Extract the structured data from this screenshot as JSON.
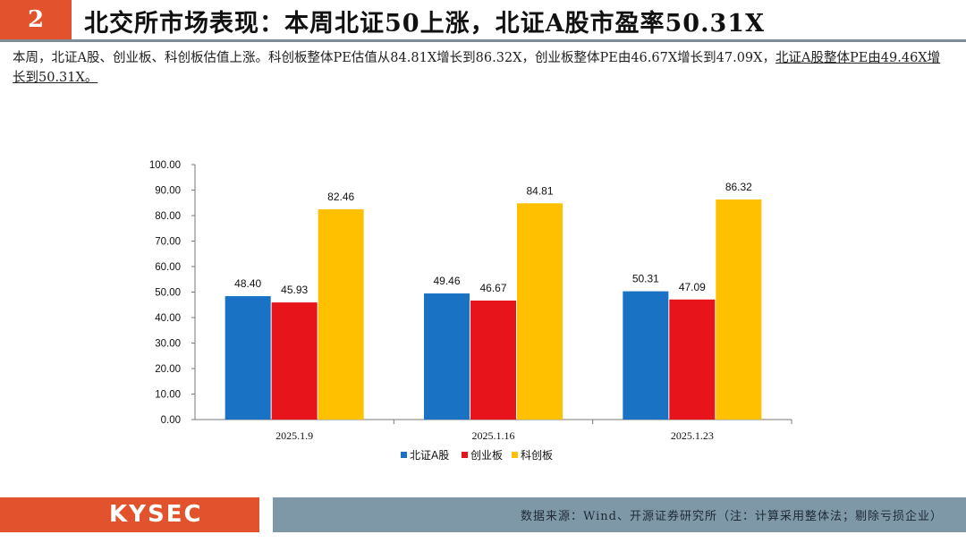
{
  "header": {
    "section_number": "2",
    "title": "北交所市场表现：本周北证50上涨，北证A股市盈率50.31X"
  },
  "summary": {
    "text_plain": "本周，北证A股、创业板、科创板估值上涨。科创板整体PE估值从84.81X增长到86.32X，创业板整体PE由46.67X增长到47.09X，",
    "text_underlined": "北证A股整体PE由49.46X增长到50.31X。"
  },
  "chart_data": {
    "type": "bar",
    "categories": [
      "2025.1.9",
      "2025.1.16",
      "2025.1.23"
    ],
    "series": [
      {
        "name": "北证A股",
        "color": "#1a72c4",
        "values": [
          48.4,
          49.46,
          50.31
        ]
      },
      {
        "name": "创业板",
        "color": "#e8141b",
        "values": [
          45.93,
          46.67,
          47.09
        ]
      },
      {
        "name": "科创板",
        "color": "#ffc000",
        "values": [
          82.46,
          84.81,
          86.32
        ]
      }
    ],
    "ylim": [
      0,
      100
    ],
    "yticks": [
      "0.00",
      "10.00",
      "20.00",
      "30.00",
      "40.00",
      "50.00",
      "60.00",
      "70.00",
      "80.00",
      "90.00",
      "100.00"
    ],
    "legend_position": "bottom",
    "grid": false
  },
  "footer": {
    "logo": "KYSEC",
    "source": "数据来源：Wind、开源证券研究所（注：计算采用整体法；剔除亏损企业）"
  }
}
